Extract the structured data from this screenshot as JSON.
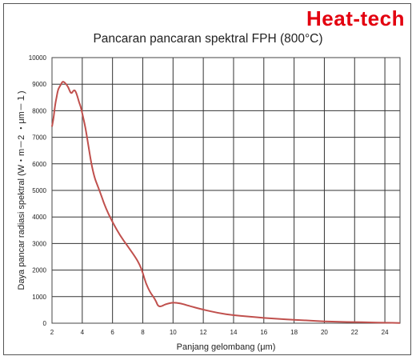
{
  "brand": {
    "name": "Heat-tech",
    "color": "#e3000f"
  },
  "chart_data": {
    "type": "line",
    "title": "Pancaran pancaran spektral FPH (800°C)",
    "xlabel": "Panjang gelombang (μm)",
    "ylabel": "Daya pancar radiasi spektral (W・m－2 ・μm－１)",
    "xlim": [
      2,
      25
    ],
    "ylim": [
      0,
      10000
    ],
    "x_ticks": [
      2,
      4,
      6,
      8,
      10,
      12,
      14,
      16,
      18,
      20,
      22,
      24
    ],
    "y_ticks": [
      0,
      1000,
      2000,
      3000,
      4000,
      5000,
      6000,
      7000,
      8000,
      9000,
      10000
    ],
    "grid": true,
    "line_color": "#c0504d",
    "series": [
      {
        "x": [
          2.0,
          2.1,
          2.2,
          2.3,
          2.4,
          2.5,
          2.6,
          2.7,
          2.8,
          2.9,
          3.0,
          3.1,
          3.2,
          3.3,
          3.4,
          3.5,
          3.6,
          3.7,
          3.8,
          3.9,
          4.0,
          4.2,
          4.4,
          4.6,
          4.8,
          5.0,
          5.2,
          5.5,
          6.0,
          6.5,
          7.0,
          7.5,
          7.8,
          8.0,
          8.2,
          8.5,
          8.7,
          8.9,
          9.0,
          9.2,
          9.5,
          10.0,
          10.5,
          11.0,
          12.0,
          13.0,
          14.0,
          15.0,
          16.0,
          17.0,
          18.0,
          19.0,
          20.0,
          21.0,
          22.0,
          23.0,
          24.0,
          25.0
        ],
        "y": [
          7400,
          7700,
          8200,
          8500,
          8800,
          8900,
          9000,
          9100,
          9080,
          9020,
          8950,
          8850,
          8700,
          8650,
          8750,
          8780,
          8680,
          8500,
          8300,
          8150,
          7900,
          7400,
          6700,
          6000,
          5500,
          5200,
          4900,
          4400,
          3800,
          3300,
          2900,
          2500,
          2200,
          1900,
          1500,
          1150,
          1000,
          800,
          650,
          620,
          720,
          780,
          750,
          660,
          510,
          380,
          300,
          250,
          200,
          160,
          130,
          100,
          70,
          50,
          40,
          30,
          20,
          10
        ]
      }
    ]
  }
}
